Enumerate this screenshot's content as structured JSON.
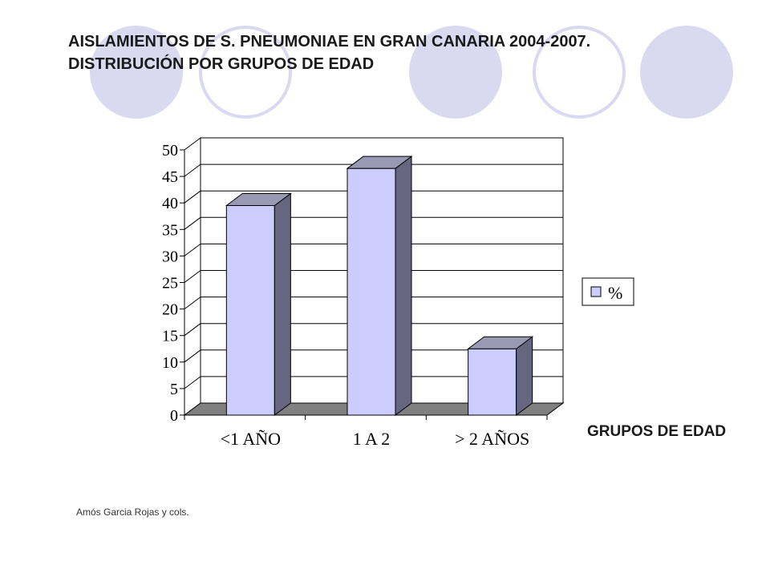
{
  "slide": {
    "title_line1": "AISLAMIENTOS DE S. PNEUMONIAE EN GRAN CANARIA 2004-2007.",
    "title_line2": "DISTRIBUCIÓN POR GRUPOS DE EDAD",
    "axis_caption": "GRUPOS DE EDAD",
    "credit": "Amós Garcia Rojas y cols."
  },
  "colors": {
    "circle_fill": "#d9d9ef",
    "circle_outline": "#d9d9ef",
    "bar_front": "#ccccff",
    "bar_side": "#666680",
    "bar_top": "#9999b3",
    "floor": "#808080"
  },
  "chart_data": {
    "type": "bar",
    "style": "3d-column",
    "categories": [
      "<1 AÑO",
      "1 A 2",
      "> 2 AÑOS"
    ],
    "series": [
      {
        "name": "%",
        "values": [
          39.5,
          46.5,
          12.5
        ]
      }
    ],
    "ylim": [
      0,
      50
    ],
    "yticks": [
      0,
      5,
      10,
      15,
      20,
      25,
      30,
      35,
      40,
      45,
      50
    ],
    "grid": true,
    "legend_position": "right"
  }
}
